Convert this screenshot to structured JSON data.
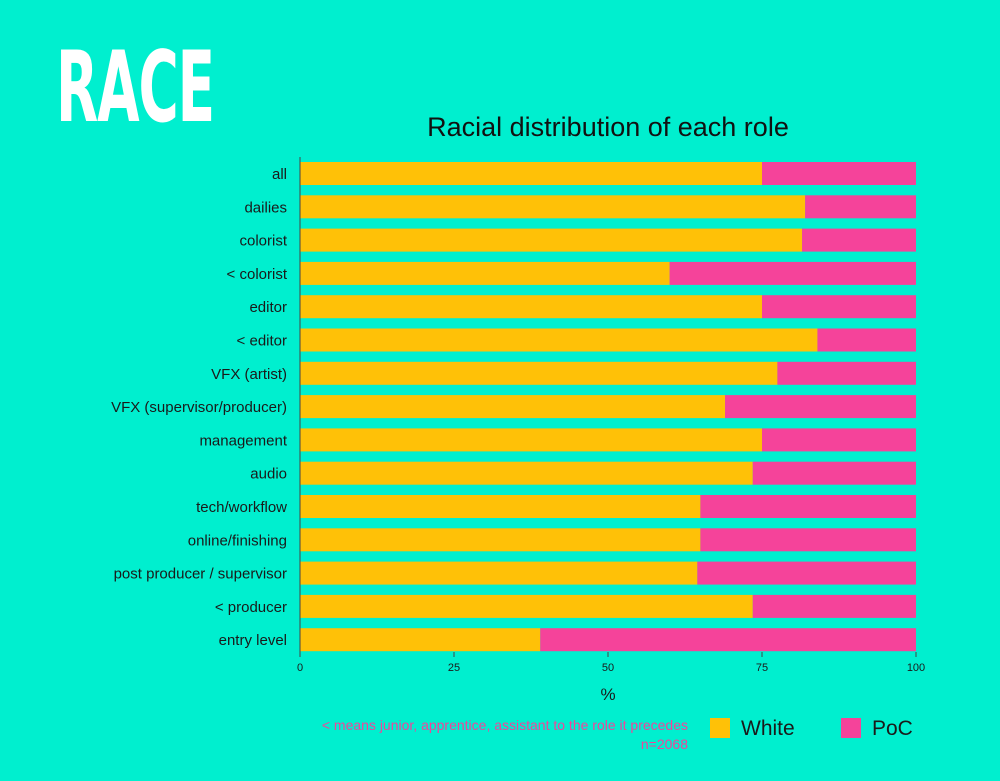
{
  "page_title": "RACE",
  "footnote": {
    "line1": "< means junior, apprentice, assistant to the role it precedes",
    "line2": "n=2068"
  },
  "colors": {
    "background": "#00efcf",
    "white_series": "#ffc107",
    "poc_series": "#f5439a"
  },
  "chart_data": {
    "type": "bar",
    "orientation": "horizontal",
    "stacked": true,
    "title": "Racial distribution of each role",
    "xlabel": "%",
    "ylabel": "",
    "xlim": [
      0,
      100
    ],
    "xticks": [
      0,
      25,
      50,
      75,
      100
    ],
    "grid": false,
    "legend_position": "bottom-right",
    "categories": [
      "all",
      "dailies",
      "colorist",
      "< colorist",
      "editor",
      "< editor",
      "VFX (artist)",
      "VFX (supervisor/producer)",
      "management",
      "audio",
      "tech/workflow",
      "online/finishing",
      "post producer / supervisor",
      "< producer",
      "entry level"
    ],
    "series": [
      {
        "name": "White",
        "color": "#ffc107",
        "values": [
          75,
          82,
          81.5,
          60,
          75,
          84,
          77.5,
          69,
          75,
          73.5,
          65,
          65,
          64.5,
          73.5,
          39
        ]
      },
      {
        "name": "PoC",
        "color": "#f5439a",
        "values": [
          25,
          18,
          18.5,
          40,
          25,
          16,
          22.5,
          31,
          25,
          26.5,
          35,
          35,
          35.5,
          26.5,
          61
        ]
      }
    ]
  }
}
